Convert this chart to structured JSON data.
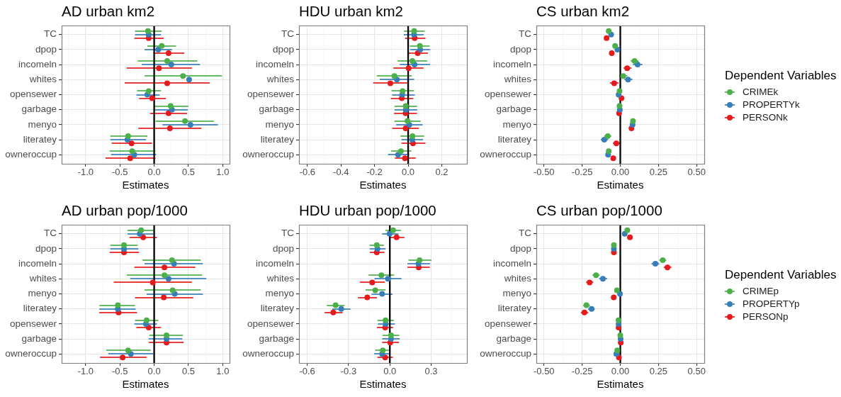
{
  "chart_data": [
    {
      "type": "scatter",
      "orientation": "horizontal",
      "title": "AD urban km2",
      "xlabel": "Estimates",
      "marker": "circle",
      "grid": true,
      "categories": [
        "TC",
        "dpop",
        "incomeln",
        "whites",
        "opensewer",
        "garbage",
        "menyo",
        "literatey",
        "owneroccup"
      ],
      "xlim": [
        -1.35,
        1.1
      ],
      "xticks": [
        {
          "value": -1.25,
          "label": null
        },
        {
          "value": -1,
          "label": "-1.0"
        },
        {
          "value": -0.75,
          "label": null
        },
        {
          "value": -0.5,
          "label": "-0.5"
        },
        {
          "value": -0.25,
          "label": null
        },
        {
          "value": 0,
          "label": "0.0"
        },
        {
          "value": 0.25,
          "label": null
        },
        {
          "value": 0.5,
          "label": "0.5"
        },
        {
          "value": 0.75,
          "label": null
        },
        {
          "value": 1,
          "label": "1.0"
        }
      ],
      "ref_lines": [
        {
          "axis": "x",
          "value": 0,
          "color": "#000000"
        }
      ],
      "series": [
        {
          "color": "#4daf4a",
          "values": [
            -0.09,
            0.11,
            0.19,
            0.42,
            -0.08,
            0.24,
            0.45,
            -0.38,
            -0.32
          ],
          "errors": [
            [
              -0.28,
              0.11
            ],
            [
              -0.1,
              0.32
            ],
            [
              -0.24,
              0.63
            ],
            [
              -0.14,
              0.99
            ],
            [
              -0.25,
              0.1
            ],
            [
              0.0,
              0.5
            ],
            [
              0.02,
              0.87
            ],
            [
              -0.64,
              -0.1
            ],
            [
              -0.65,
              0.02
            ]
          ]
        },
        {
          "color": "#377eb8",
          "values": [
            -0.08,
            0.06,
            0.25,
            0.51,
            -0.1,
            0.26,
            0.53,
            -0.39,
            -0.29
          ],
          "errors": [
            [
              -0.28,
              0.1
            ],
            [
              -0.14,
              0.26
            ],
            [
              -0.18,
              0.67
            ],
            null,
            [
              -0.26,
              0.08
            ],
            [
              0.0,
              0.49
            ],
            [
              0.12,
              0.93
            ],
            [
              -0.64,
              -0.12
            ],
            [
              -0.63,
              0.03
            ]
          ]
        },
        {
          "color": "#e41a1c",
          "values": [
            -0.08,
            0.21,
            0.07,
            0.19,
            -0.03,
            0.21,
            0.23,
            -0.33,
            -0.35
          ],
          "errors": [
            [
              -0.29,
              0.14
            ],
            [
              -0.01,
              0.44
            ],
            [
              -0.4,
              0.55
            ],
            [
              -0.43,
              0.81
            ],
            [
              -0.22,
              0.17
            ],
            [
              -0.06,
              0.48
            ],
            [
              -0.23,
              0.69
            ],
            [
              -0.62,
              -0.03
            ],
            [
              -0.71,
              0.02
            ]
          ]
        }
      ]
    },
    {
      "type": "scatter",
      "orientation": "horizontal",
      "title": "HDU urban km2",
      "xlabel": "Estimates",
      "marker": "circle",
      "grid": true,
      "categories": [
        "TC",
        "dpop",
        "incomeln",
        "whites",
        "opensewer",
        "garbage",
        "menyo",
        "literatey",
        "owneroccup"
      ],
      "xlim": [
        -0.65,
        0.35
      ],
      "xticks": [
        -0.6,
        {
          "value": -0.5,
          "label": null
        },
        -0.4,
        {
          "value": -0.3,
          "label": null
        },
        -0.2,
        {
          "value": -0.1,
          "label": null
        },
        {
          "value": 0,
          "label": "0.0"
        },
        {
          "value": 0.1,
          "label": null
        },
        0.2,
        {
          "value": 0.3,
          "label": null
        }
      ],
      "ref_lines": [
        {
          "axis": "x",
          "value": 0,
          "color": "#000000"
        }
      ],
      "series": [
        {
          "color": "#4daf4a",
          "values": [
            0.036,
            0.07,
            0.025,
            -0.082,
            -0.033,
            -0.014,
            -0.004,
            0.026,
            -0.043
          ],
          "errors": [
            [
              -0.025,
              0.099
            ],
            [
              0.01,
              0.128
            ],
            [
              -0.064,
              0.114
            ],
            [
              -0.187,
              0.022
            ],
            [
              -0.099,
              0.035
            ],
            [
              -0.081,
              0.054
            ],
            [
              -0.082,
              0.075
            ],
            [
              -0.046,
              0.096
            ],
            [
              -0.102,
              0.019
            ]
          ]
        },
        {
          "color": "#377eb8",
          "values": [
            0.035,
            0.072,
            0.038,
            -0.067,
            -0.035,
            -0.013,
            0.007,
            0.024,
            -0.06
          ],
          "errors": [
            [
              -0.026,
              0.093
            ],
            [
              0.013,
              0.132
            ],
            [
              -0.05,
              0.131
            ],
            [
              -0.169,
              0.036
            ],
            [
              -0.096,
              0.04
            ],
            [
              -0.081,
              0.054
            ],
            [
              -0.071,
              0.086
            ],
            [
              -0.04,
              0.089
            ],
            [
              -0.12,
              0.006
            ]
          ]
        },
        {
          "color": "#e41a1c",
          "values": [
            0.039,
            0.057,
            0.003,
            -0.106,
            -0.038,
            -0.015,
            -0.015,
            0.029,
            -0.019
          ],
          "errors": [
            [
              -0.019,
              0.103
            ],
            [
              -0.001,
              0.118
            ],
            [
              -0.088,
              0.092
            ],
            [
              -0.208,
              -0.001
            ],
            [
              -0.103,
              0.031
            ],
            [
              -0.084,
              0.053
            ],
            [
              -0.095,
              0.064
            ],
            [
              -0.04,
              0.103
            ],
            [
              -0.079,
              0.045
            ]
          ]
        }
      ]
    },
    {
      "type": "scatter",
      "orientation": "horizontal",
      "title": "CS urban km2",
      "xlabel": "Estimates",
      "marker": "circle",
      "grid": true,
      "legend": "right",
      "legend_title": "Dependent Variables",
      "categories": [
        "TC",
        "dpop",
        "incomeln",
        "whites",
        "opensewer",
        "garbage",
        "menyo",
        "literatey",
        "owneroccup"
      ],
      "xlim": [
        -0.55,
        0.55
      ],
      "xticks": [
        {
          "value": -0.5,
          "label": "-0.50"
        },
        {
          "value": -0.375,
          "label": null
        },
        {
          "value": -0.25,
          "label": "-0.25"
        },
        {
          "value": -0.125,
          "label": null
        },
        {
          "value": 0,
          "label": "0.00"
        },
        {
          "value": 0.125,
          "label": null
        },
        {
          "value": 0.25,
          "label": "0.25"
        },
        {
          "value": 0.375,
          "label": null
        },
        {
          "value": 0.5,
          "label": "0.50"
        }
      ],
      "ref_lines": [
        {
          "axis": "x",
          "value": 0,
          "color": "#000000"
        }
      ],
      "series": [
        {
          "name": "CRIMEk",
          "color": "#4daf4a",
          "values": [
            -0.076,
            -0.034,
            0.093,
            0.019,
            -0.005,
            -0.005,
            0.083,
            -0.082,
            -0.076
          ],
          "errors": [
            null,
            null,
            [
              0.068,
              0.119
            ],
            [
              -0.005,
              0.046
            ],
            null,
            null,
            null,
            [
              -0.105,
              -0.059
            ],
            null
          ]
        },
        {
          "name": "PROPERTYk",
          "color": "#377eb8",
          "values": [
            -0.06,
            -0.019,
            0.113,
            0.051,
            -0.011,
            -0.003,
            0.08,
            -0.105,
            -0.08
          ],
          "errors": [
            null,
            null,
            [
              0.083,
              0.145
            ],
            [
              0.026,
              0.08
            ],
            null,
            null,
            null,
            [
              -0.128,
              -0.08
            ],
            null
          ]
        },
        {
          "name": "PERSONk",
          "color": "#e41a1c",
          "values": [
            -0.09,
            -0.056,
            0.045,
            -0.04,
            0.008,
            -0.008,
            0.073,
            -0.026,
            -0.046
          ],
          "errors": [
            null,
            null,
            [
              0.022,
              0.073
            ],
            [
              -0.068,
              -0.012
            ],
            null,
            null,
            null,
            [
              -0.048,
              -0.002
            ],
            null
          ]
        }
      ]
    },
    {
      "type": "scatter",
      "orientation": "horizontal",
      "title": "AD urban pop/1000",
      "xlabel": "Estimates",
      "marker": "circle",
      "grid": true,
      "categories": [
        "TC",
        "dpop",
        "incomeln",
        "whites",
        "menyo",
        "literatey",
        "opensewer",
        "garbage",
        "owneroccup"
      ],
      "xlim": [
        -1.35,
        1.1
      ],
      "xticks": [
        {
          "value": -1.25,
          "label": null
        },
        {
          "value": -1,
          "label": "-1.0"
        },
        {
          "value": -0.75,
          "label": null
        },
        {
          "value": -0.5,
          "label": "-0.5"
        },
        {
          "value": -0.25,
          "label": null
        },
        {
          "value": 0,
          "label": "0.0"
        },
        {
          "value": 0.25,
          "label": null
        },
        {
          "value": 0.5,
          "label": "0.5"
        },
        {
          "value": 0.75,
          "label": null
        },
        {
          "value": 1,
          "label": "1.0"
        }
      ],
      "ref_lines": [
        {
          "axis": "x",
          "value": 0,
          "color": "#000000"
        }
      ],
      "series": [
        {
          "color": "#4daf4a",
          "values": [
            -0.19,
            -0.44,
            0.26,
            0.15,
            0.27,
            -0.53,
            -0.11,
            0.18,
            -0.38
          ],
          "errors": [
            [
              -0.39,
              0.0
            ],
            [
              -0.64,
              -0.24
            ],
            [
              -0.17,
              0.68
            ],
            [
              -0.4,
              0.7
            ],
            [
              -0.14,
              0.68
            ],
            [
              -0.8,
              -0.28
            ],
            [
              -0.28,
              0.06
            ],
            [
              -0.07,
              0.42
            ],
            [
              -0.7,
              -0.05
            ]
          ]
        },
        {
          "color": "#377eb8",
          "values": [
            -0.21,
            -0.44,
            0.29,
            0.21,
            0.3,
            -0.53,
            -0.12,
            0.18,
            -0.34
          ],
          "errors": [
            [
              -0.39,
              -0.01
            ],
            [
              -0.64,
              -0.23
            ],
            [
              -0.14,
              0.71
            ],
            [
              -0.35,
              0.76
            ],
            [
              -0.11,
              0.71
            ],
            [
              -0.8,
              -0.27
            ],
            [
              -0.29,
              0.04
            ],
            [
              -0.08,
              0.41
            ],
            [
              -0.67,
              -0.01
            ]
          ]
        },
        {
          "color": "#e41a1c",
          "values": [
            -0.16,
            -0.44,
            0.15,
            -0.02,
            0.14,
            -0.52,
            -0.08,
            0.18,
            -0.46
          ],
          "errors": [
            [
              -0.36,
              0.04
            ],
            [
              -0.65,
              -0.22
            ],
            [
              -0.29,
              0.6
            ],
            [
              -0.59,
              0.55
            ],
            [
              -0.28,
              0.57
            ],
            [
              -0.8,
              -0.25
            ],
            [
              -0.26,
              0.1
            ],
            [
              -0.08,
              0.43
            ],
            [
              -0.79,
              -0.11
            ]
          ]
        }
      ]
    },
    {
      "type": "scatter",
      "orientation": "horizontal",
      "title": "HDU urban pop/1000",
      "xlabel": "Estimates",
      "marker": "circle",
      "grid": true,
      "categories": [
        "TC",
        "dpop",
        "incomeln",
        "whites",
        "menyo",
        "literatey",
        "opensewer",
        "garbage",
        "owneroccup"
      ],
      "xlim": [
        -0.66,
        0.56
      ],
      "xticks": [
        -0.6,
        {
          "value": -0.45,
          "label": null
        },
        -0.3,
        {
          "value": -0.15,
          "label": null
        },
        {
          "value": 0,
          "label": "0.0"
        },
        {
          "value": 0.15,
          "label": null
        },
        0.3,
        {
          "value": 0.45,
          "label": null
        }
      ],
      "ref_lines": [
        {
          "axis": "x",
          "value": 0,
          "color": "#000000"
        }
      ],
      "series": [
        {
          "color": "#4daf4a",
          "values": [
            0.024,
            -0.095,
            0.216,
            -0.061,
            -0.106,
            -0.394,
            -0.031,
            0.009,
            -0.051
          ],
          "errors": [
            [
              -0.031,
              0.08
            ],
            [
              -0.147,
              -0.043
            ],
            [
              0.136,
              0.302
            ],
            [
              -0.155,
              0.032
            ],
            [
              -0.176,
              -0.031
            ],
            [
              -0.457,
              -0.329
            ],
            [
              -0.09,
              0.029
            ],
            [
              -0.053,
              0.068
            ],
            [
              -0.107,
              0.003
            ]
          ]
        },
        {
          "color": "#377eb8",
          "values": [
            -0.002,
            -0.09,
            0.208,
            -0.014,
            -0.056,
            -0.353,
            -0.031,
            0.009,
            -0.056
          ],
          "errors": [
            [
              -0.056,
              0.063
            ],
            [
              -0.145,
              -0.031
            ],
            [
              0.128,
              0.293
            ],
            [
              -0.111,
              0.084
            ],
            [
              -0.133,
              0.02
            ],
            [
              -0.418,
              -0.286
            ],
            [
              -0.087,
              0.037
            ],
            [
              -0.056,
              0.072
            ],
            [
              -0.114,
              -0.005
            ]
          ]
        },
        {
          "color": "#e41a1c",
          "values": [
            0.049,
            -0.095,
            0.21,
            -0.128,
            -0.164,
            -0.411,
            -0.034,
            0.003,
            -0.034
          ],
          "errors": [
            [
              0.0,
              0.106
            ],
            [
              -0.145,
              -0.039
            ],
            [
              0.128,
              0.29
            ],
            [
              -0.218,
              -0.036
            ],
            [
              -0.232,
              -0.094
            ],
            [
              -0.474,
              -0.343
            ],
            [
              -0.094,
              0.024
            ],
            [
              -0.056,
              0.066
            ],
            [
              -0.09,
              0.022
            ]
          ]
        }
      ]
    },
    {
      "type": "scatter",
      "orientation": "horizontal",
      "title": "CS urban pop/1000",
      "xlabel": "Estimates",
      "marker": "circle",
      "grid": true,
      "legend": "right",
      "legend_title": "Dependent Variables",
      "categories": [
        "TC",
        "dpop",
        "incomeln",
        "whites",
        "menyo",
        "literatey",
        "opensewer",
        "garbage",
        "owneroccup"
      ],
      "xlim": [
        -0.55,
        0.55
      ],
      "xticks": [
        {
          "value": -0.5,
          "label": "-0.50"
        },
        {
          "value": -0.375,
          "label": null
        },
        {
          "value": -0.25,
          "label": "-0.25"
        },
        {
          "value": -0.125,
          "label": null
        },
        {
          "value": 0,
          "label": "0.00"
        },
        {
          "value": 0.125,
          "label": null
        },
        {
          "value": 0.25,
          "label": "0.25"
        },
        {
          "value": 0.375,
          "label": null
        },
        {
          "value": 0.5,
          "label": "0.50"
        }
      ],
      "ref_lines": [
        {
          "axis": "x",
          "value": 0,
          "color": "#000000"
        }
      ],
      "series": [
        {
          "name": "CRIMEp",
          "color": "#4daf4a",
          "values": [
            0.046,
            -0.042,
            0.278,
            -0.159,
            -0.022,
            -0.222,
            -0.012,
            0.0,
            -0.02
          ],
          "errors": [
            null,
            null,
            [
              0.255,
              0.301
            ],
            [
              -0.182,
              -0.136
            ],
            null,
            [
              -0.244,
              -0.198
            ],
            null,
            null,
            null
          ]
        },
        {
          "name": "PROPERTYp",
          "color": "#377eb8",
          "values": [
            0.029,
            -0.042,
            0.23,
            -0.114,
            -0.002,
            -0.188,
            -0.011,
            0.002,
            -0.026
          ],
          "errors": [
            null,
            null,
            [
              0.204,
              0.255
            ],
            [
              -0.139,
              -0.086
            ],
            null,
            [
              -0.211,
              -0.167
            ],
            null,
            null,
            null
          ]
        },
        {
          "name": "PERSONp",
          "color": "#e41a1c",
          "values": [
            0.063,
            -0.042,
            0.309,
            -0.201,
            -0.043,
            -0.235,
            -0.011,
            0.003,
            -0.009
          ],
          "errors": [
            null,
            null,
            [
              0.285,
              0.335
            ],
            [
              -0.224,
              -0.177
            ],
            null,
            [
              -0.258,
              -0.21
            ],
            null,
            null,
            null
          ]
        }
      ]
    }
  ]
}
